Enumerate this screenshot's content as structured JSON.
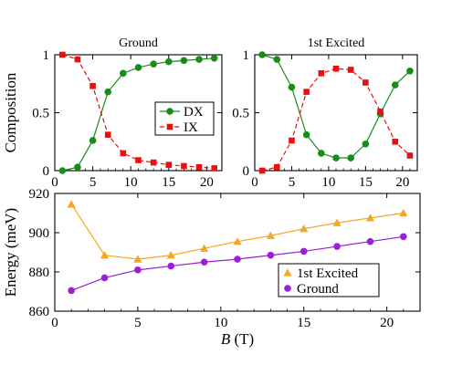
{
  "chart_data": [
    {
      "type": "line",
      "title": "Ground",
      "xlabel": "",
      "ylabel": "Composition",
      "xlim": [
        0,
        22
      ],
      "ylim": [
        0,
        1
      ],
      "xticks": [
        0,
        5,
        10,
        15,
        20
      ],
      "xtick_labels": [
        "0",
        "5",
        "10",
        "15",
        "20"
      ],
      "yticks": [
        0,
        0.5,
        1
      ],
      "ytick_labels": [
        "0",
        "0.5",
        "1"
      ],
      "legend_position": "center-right",
      "x": [
        1,
        3,
        5,
        7,
        9,
        11,
        13,
        15,
        17,
        19,
        21
      ],
      "series": [
        {
          "name": "DX",
          "color": "#1a8c1a",
          "marker": "circle",
          "line": "solid",
          "values": [
            0.0,
            0.03,
            0.26,
            0.68,
            0.84,
            0.89,
            0.92,
            0.94,
            0.95,
            0.96,
            0.97
          ]
        },
        {
          "name": "IX",
          "color": "#e81010",
          "marker": "square",
          "line": "dashed",
          "values": [
            1.0,
            0.96,
            0.73,
            0.31,
            0.15,
            0.09,
            0.07,
            0.05,
            0.04,
            0.03,
            0.02
          ]
        }
      ]
    },
    {
      "type": "line",
      "title": "1st Excited",
      "xlabel": "",
      "ylabel": "",
      "xlim": [
        0,
        22
      ],
      "ylim": [
        0,
        1
      ],
      "xticks": [
        0,
        5,
        10,
        15,
        20
      ],
      "xtick_labels": [
        "0",
        "5",
        "10",
        "15",
        "20"
      ],
      "yticks": [
        0,
        0.5,
        1
      ],
      "ytick_labels": [
        "0",
        "0.5",
        "1"
      ],
      "x": [
        1,
        3,
        5,
        7,
        9,
        11,
        13,
        15,
        17,
        19,
        21
      ],
      "series": [
        {
          "name": "DX",
          "color": "#1a8c1a",
          "marker": "circle",
          "line": "solid",
          "values": [
            1.0,
            0.96,
            0.72,
            0.31,
            0.15,
            0.11,
            0.11,
            0.23,
            0.49,
            0.74,
            0.86
          ]
        },
        {
          "name": "IX",
          "color": "#e81010",
          "marker": "square",
          "line": "dashed",
          "values": [
            0.0,
            0.03,
            0.26,
            0.68,
            0.84,
            0.88,
            0.87,
            0.76,
            0.51,
            0.25,
            0.13
          ]
        }
      ]
    },
    {
      "type": "line",
      "title": "",
      "xlabel_italic": "B",
      "xlabel_unit": " (T)",
      "ylabel": "Energy (meV)",
      "xlim": [
        0,
        22
      ],
      "ylim": [
        860,
        920
      ],
      "xticks": [
        0,
        5,
        10,
        15,
        20
      ],
      "xtick_labels": [
        "0",
        "5",
        "10",
        "15",
        "20"
      ],
      "yticks": [
        860,
        880,
        900,
        920
      ],
      "ytick_labels": [
        "860",
        "880",
        "900",
        "920"
      ],
      "legend_position": "lower-right",
      "x": [
        1,
        3,
        5,
        7,
        9,
        11,
        13,
        15,
        17,
        19,
        21
      ],
      "series": [
        {
          "name": "1st Excited",
          "color": "#f5a623",
          "marker": "triangle",
          "line": "solid",
          "values": [
            914.5,
            888.5,
            886.5,
            888.5,
            892,
            895.5,
            898.5,
            902,
            905,
            907.5,
            910
          ]
        },
        {
          "name": "Ground",
          "color": "#9a1fd6",
          "marker": "circle",
          "line": "solid",
          "values": [
            870.5,
            877,
            881,
            883,
            885,
            886.5,
            888.5,
            890.5,
            893,
            895.5,
            898
          ]
        }
      ]
    }
  ]
}
